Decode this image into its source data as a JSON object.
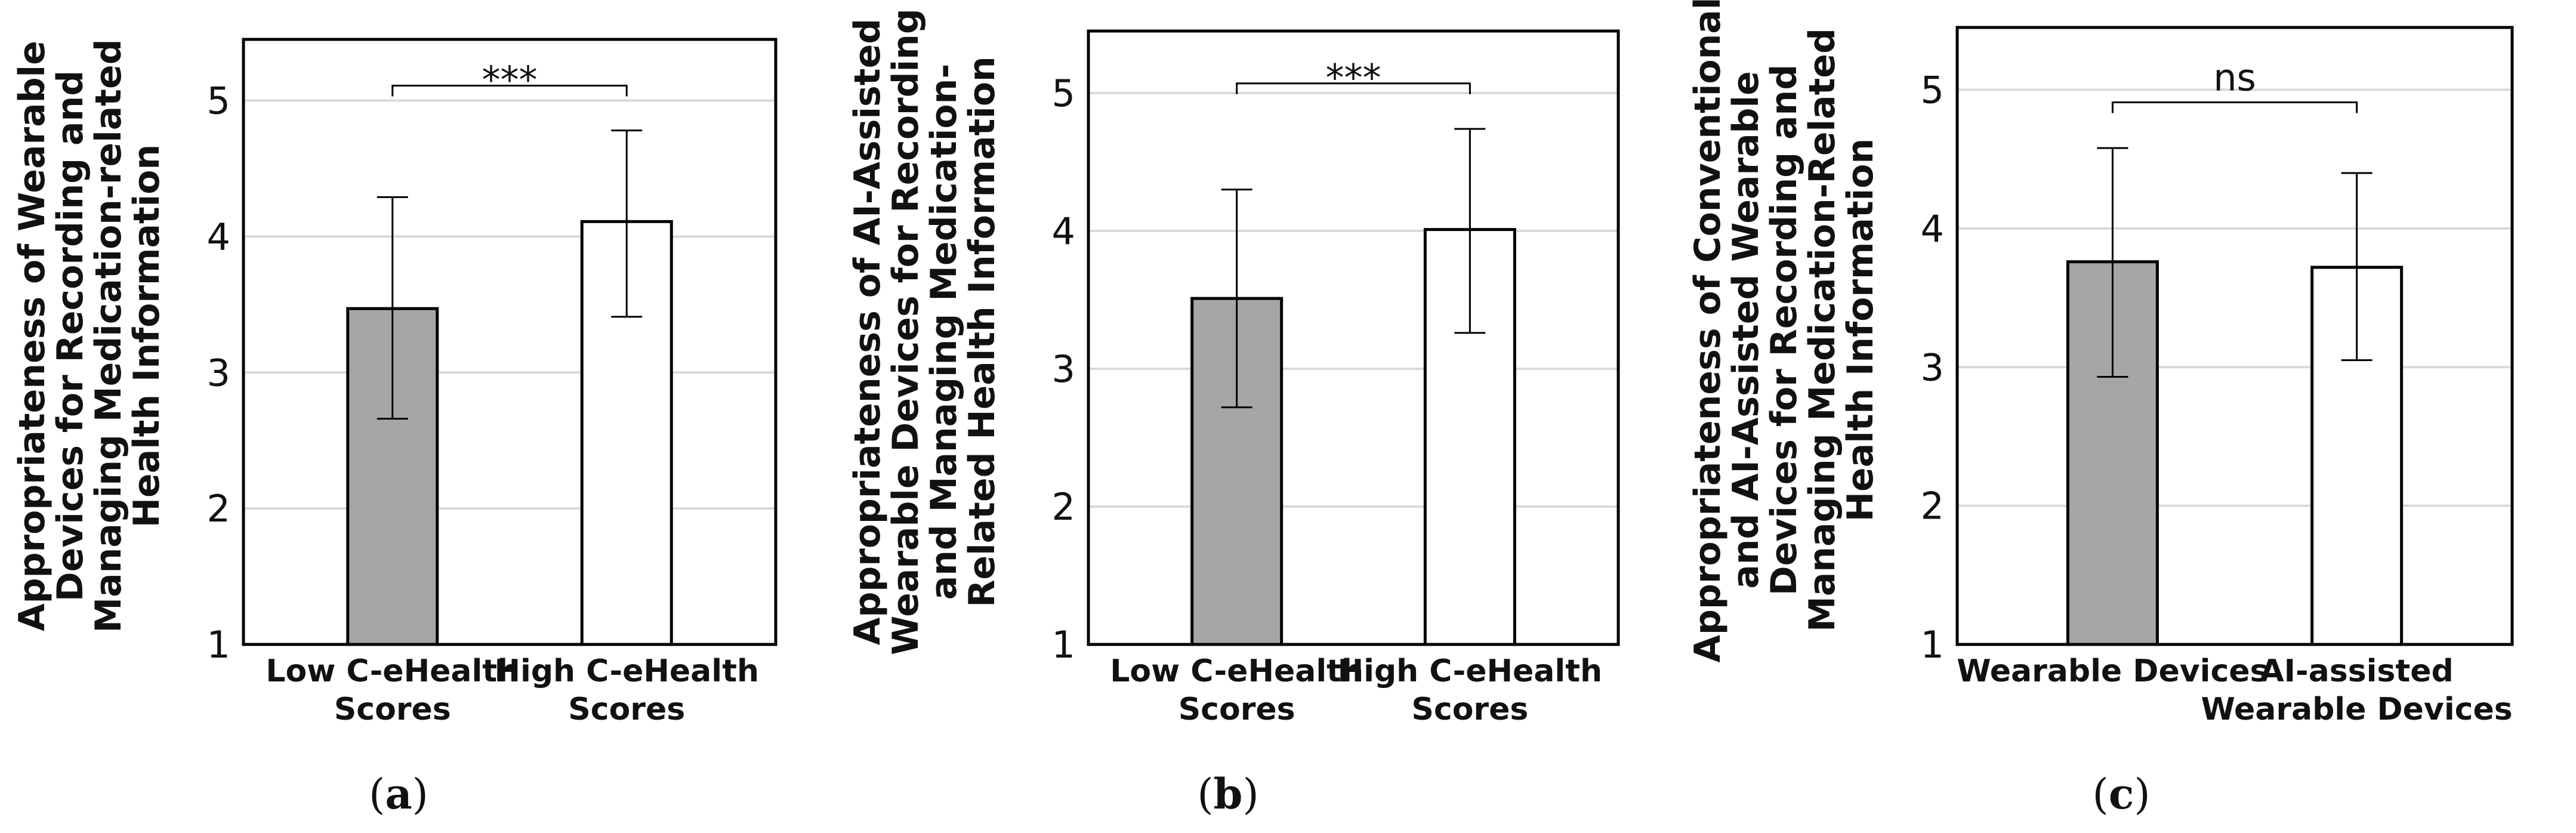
{
  "chart_data": [
    {
      "type": "bar",
      "panel_label": "a",
      "categories": [
        "Low C-eHealth Scores",
        "High C-eHealth Scores"
      ],
      "category_lines": [
        [
          "Low C-eHealth",
          "Scores"
        ],
        [
          "High C-eHealth",
          "Scores"
        ]
      ],
      "values": [
        3.47,
        4.11
      ],
      "error_low": [
        2.66,
        3.41
      ],
      "error_high": [
        4.29,
        4.78
      ],
      "bar_colors": [
        "#a6a6a6",
        "#ffffff"
      ],
      "ylabel_lines": [
        "Appropriateness of  Wearable",
        "Devices for Recording and",
        "Managing Medication-related",
        "Health Information"
      ],
      "ylim": [
        1,
        5.45
      ],
      "yticks": [
        1,
        2,
        3,
        4,
        5
      ],
      "grid": true,
      "significance": "***"
    },
    {
      "type": "bar",
      "panel_label": "b",
      "categories": [
        "Low C-eHealth Scores",
        "High C-eHealth Scores"
      ],
      "category_lines": [
        [
          "Low C-eHealth",
          "Scores"
        ],
        [
          "High C-eHealth",
          "Scores"
        ]
      ],
      "values": [
        3.51,
        4.01
      ],
      "error_low": [
        2.72,
        3.26
      ],
      "error_high": [
        4.3,
        4.74
      ],
      "bar_colors": [
        "#a6a6a6",
        "#ffffff"
      ],
      "ylabel_lines": [
        "Appropriateness of AI-Assisted",
        "Wearable Devices for Recording",
        "and Managing Medication-",
        "Related Health Information"
      ],
      "ylim": [
        1,
        5.45
      ],
      "yticks": [
        1,
        2,
        3,
        4,
        5
      ],
      "grid": true,
      "significance": "***"
    },
    {
      "type": "bar",
      "panel_label": "c",
      "categories": [
        "Wearable Devices",
        "AI-assisted Wearable Devices"
      ],
      "category_lines": [
        [
          "Wearable Devices"
        ],
        [
          "AI-assisted",
          "Wearable Devices"
        ]
      ],
      "values": [
        3.76,
        3.72
      ],
      "error_low": [
        2.93,
        3.05
      ],
      "error_high": [
        4.58,
        4.4
      ],
      "bar_colors": [
        "#a6a6a6",
        "#ffffff"
      ],
      "ylabel_lines": [
        "Appropriateness of Conventional",
        "and AI-Assisted Wearable",
        "Devices for Recording and",
        "Managing Medication-Related",
        "Health Information"
      ],
      "ylim": [
        1,
        5.45
      ],
      "yticks": [
        1,
        2,
        3,
        4,
        5
      ],
      "grid": true,
      "significance": "ns"
    }
  ]
}
